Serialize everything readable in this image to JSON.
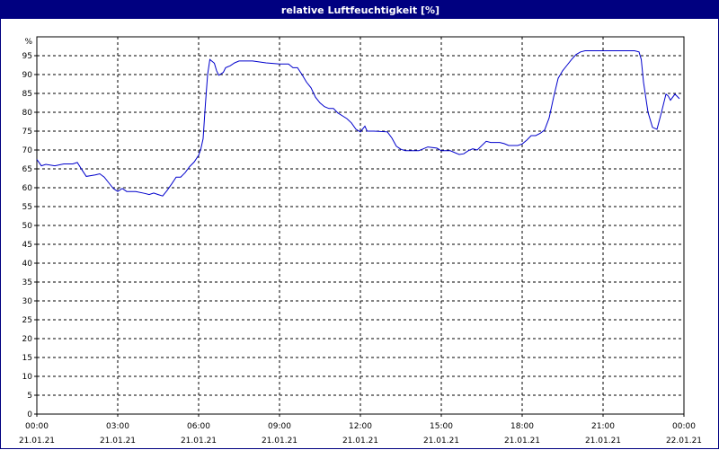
{
  "window": {
    "title": "relative Luftfeuchtigkeit [%]"
  },
  "colors": {
    "title_bar": "#000080",
    "title_text": "#ffffff",
    "series_line": "#0000cc",
    "grid": "#000000",
    "axis": "#000000",
    "background": "#ffffff"
  },
  "chart_data": {
    "type": "line",
    "title": "relative Luftfeuchtigkeit [%]",
    "xlabel": "",
    "ylabel": "%",
    "y_unit_label": "%",
    "ylim": [
      0,
      100
    ],
    "xlim_hours": [
      0,
      24
    ],
    "y_ticks": [
      0,
      5,
      10,
      15,
      20,
      25,
      30,
      35,
      40,
      45,
      50,
      55,
      60,
      65,
      70,
      75,
      80,
      85,
      90,
      95
    ],
    "x_ticks": [
      {
        "time": "00:00",
        "date": "21.01.21"
      },
      {
        "time": "03:00",
        "date": "21.01.21"
      },
      {
        "time": "06:00",
        "date": "21.01.21"
      },
      {
        "time": "09:00",
        "date": "21.01.21"
      },
      {
        "time": "12:00",
        "date": "21.01.21"
      },
      {
        "time": "15:00",
        "date": "21.01.21"
      },
      {
        "time": "18:00",
        "date": "21.01.21"
      },
      {
        "time": "21:00",
        "date": "21.01.21"
      },
      {
        "time": "00:00",
        "date": "22.01.21"
      }
    ],
    "grid": true,
    "grid_style": "dashed",
    "legend": "none",
    "series": [
      {
        "points": [
          [
            "00:00",
            67.5
          ],
          [
            "00:10",
            65.8
          ],
          [
            "00:20",
            66.2
          ],
          [
            "00:40",
            65.8
          ],
          [
            "01:00",
            66.3
          ],
          [
            "01:20",
            66.3
          ],
          [
            "01:30",
            66.7
          ],
          [
            "01:40",
            64.8
          ],
          [
            "01:50",
            63.0
          ],
          [
            "02:10",
            63.4
          ],
          [
            "02:20",
            63.7
          ],
          [
            "02:30",
            62.8
          ],
          [
            "02:40",
            61.3
          ],
          [
            "02:50",
            59.8
          ],
          [
            "03:00",
            59.0
          ],
          [
            "03:10",
            59.8
          ],
          [
            "03:20",
            59.0
          ],
          [
            "03:40",
            59.0
          ],
          [
            "04:00",
            58.5
          ],
          [
            "04:10",
            58.2
          ],
          [
            "04:20",
            58.6
          ],
          [
            "04:30",
            58.2
          ],
          [
            "04:40",
            57.8
          ],
          [
            "04:50",
            59.3
          ],
          [
            "05:00",
            61.0
          ],
          [
            "05:10",
            62.8
          ],
          [
            "05:20",
            62.8
          ],
          [
            "05:30",
            64.0
          ],
          [
            "05:40",
            65.6
          ],
          [
            "05:50",
            66.8
          ],
          [
            "06:00",
            68.6
          ],
          [
            "06:05",
            70.3
          ],
          [
            "06:10",
            73.0
          ],
          [
            "06:15",
            82.0
          ],
          [
            "06:20",
            90.0
          ],
          [
            "06:25",
            94.0
          ],
          [
            "06:35",
            93.0
          ],
          [
            "06:40",
            91.0
          ],
          [
            "06:45",
            89.8
          ],
          [
            "06:55",
            90.6
          ],
          [
            "07:00",
            91.8
          ],
          [
            "07:10",
            92.3
          ],
          [
            "07:20",
            93.1
          ],
          [
            "07:30",
            93.6
          ],
          [
            "08:00",
            93.6
          ],
          [
            "08:30",
            93.1
          ],
          [
            "09:00",
            92.8
          ],
          [
            "09:20",
            92.8
          ],
          [
            "09:30",
            91.8
          ],
          [
            "09:40",
            91.8
          ],
          [
            "09:50",
            90.0
          ],
          [
            "10:00",
            88.0
          ],
          [
            "10:10",
            86.5
          ],
          [
            "10:20",
            84.0
          ],
          [
            "10:30",
            82.5
          ],
          [
            "10:40",
            81.5
          ],
          [
            "10:50",
            81.0
          ],
          [
            "11:00",
            81.0
          ],
          [
            "11:10",
            79.8
          ],
          [
            "11:30",
            78.3
          ],
          [
            "11:40",
            77.2
          ],
          [
            "11:50",
            75.5
          ],
          [
            "12:00",
            74.8
          ],
          [
            "12:10",
            76.3
          ],
          [
            "12:15",
            75.0
          ],
          [
            "12:30",
            75.0
          ],
          [
            "13:00",
            74.8
          ],
          [
            "13:10",
            73.2
          ],
          [
            "13:20",
            71.0
          ],
          [
            "13:30",
            70.2
          ],
          [
            "13:40",
            69.8
          ],
          [
            "14:10",
            69.8
          ],
          [
            "14:20",
            70.3
          ],
          [
            "14:30",
            70.8
          ],
          [
            "14:50",
            70.5
          ],
          [
            "15:00",
            69.8
          ],
          [
            "15:20",
            69.8
          ],
          [
            "15:40",
            68.8
          ],
          [
            "15:50",
            69.0
          ],
          [
            "16:00",
            69.8
          ],
          [
            "16:10",
            70.3
          ],
          [
            "16:20",
            70.0
          ],
          [
            "16:40",
            72.3
          ],
          [
            "16:50",
            72.0
          ],
          [
            "17:10",
            72.0
          ],
          [
            "17:20",
            71.7
          ],
          [
            "17:30",
            71.2
          ],
          [
            "17:50",
            71.2
          ],
          [
            "18:00",
            71.6
          ],
          [
            "18:10",
            72.6
          ],
          [
            "18:20",
            73.8
          ],
          [
            "18:30",
            73.8
          ],
          [
            "18:40",
            74.4
          ],
          [
            "18:50",
            75.3
          ],
          [
            "19:00",
            78.5
          ],
          [
            "19:10",
            84.0
          ],
          [
            "19:20",
            89.0
          ],
          [
            "19:30",
            91.0
          ],
          [
            "19:40",
            92.5
          ],
          [
            "19:50",
            94.0
          ],
          [
            "20:00",
            95.3
          ],
          [
            "20:10",
            96.0
          ],
          [
            "20:20",
            96.3
          ],
          [
            "21:00",
            96.3
          ],
          [
            "22:10",
            96.3
          ],
          [
            "22:20",
            96.0
          ],
          [
            "22:25",
            94.0
          ],
          [
            "22:30",
            88.0
          ],
          [
            "22:40",
            80.0
          ],
          [
            "22:50",
            76.0
          ],
          [
            "23:00",
            75.5
          ],
          [
            "23:10",
            80.0
          ],
          [
            "23:20",
            84.8
          ],
          [
            "23:25",
            84.3
          ],
          [
            "23:30",
            83.2
          ],
          [
            "23:40",
            84.8
          ],
          [
            "23:50",
            83.6
          ]
        ]
      }
    ]
  }
}
